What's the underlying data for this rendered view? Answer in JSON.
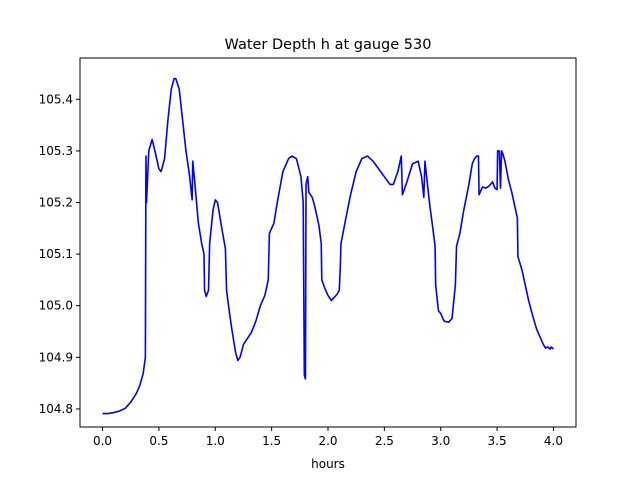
{
  "chart_data": {
    "type": "line",
    "title": "Water Depth h at gauge 530",
    "xlabel": "hours",
    "ylabel": "",
    "xlim": [
      -0.2,
      4.2
    ],
    "ylim": [
      104.765,
      105.48
    ],
    "x_ticks": [
      0.0,
      0.5,
      1.0,
      1.5,
      2.0,
      2.5,
      3.0,
      3.5,
      4.0
    ],
    "x_tick_labels": [
      "0.0",
      "0.5",
      "1.0",
      "1.5",
      "2.0",
      "2.5",
      "3.0",
      "3.5",
      "4.0"
    ],
    "y_ticks": [
      104.8,
      104.9,
      105.0,
      105.1,
      105.2,
      105.3,
      105.4
    ],
    "y_tick_labels": [
      "104.8",
      "104.9",
      "105.0",
      "105.1",
      "105.2",
      "105.3",
      "105.4"
    ],
    "grid": false,
    "series": [
      {
        "color": "#0000ff",
        "points": [
          [
            0.0,
            104.791
          ],
          [
            0.05,
            104.791
          ],
          [
            0.1,
            104.793
          ],
          [
            0.15,
            104.796
          ],
          [
            0.2,
            104.801
          ],
          [
            0.25,
            104.813
          ],
          [
            0.3,
            104.83
          ],
          [
            0.33,
            104.845
          ],
          [
            0.36,
            104.868
          ],
          [
            0.38,
            104.9
          ],
          [
            0.385,
            105.29
          ],
          [
            0.39,
            105.2
          ],
          [
            0.41,
            105.3
          ],
          [
            0.44,
            105.322
          ],
          [
            0.47,
            105.295
          ],
          [
            0.5,
            105.265
          ],
          [
            0.52,
            105.26
          ],
          [
            0.55,
            105.285
          ],
          [
            0.58,
            105.36
          ],
          [
            0.61,
            105.42
          ],
          [
            0.635,
            105.44
          ],
          [
            0.65,
            105.44
          ],
          [
            0.68,
            105.42
          ],
          [
            0.71,
            105.36
          ],
          [
            0.74,
            105.3
          ],
          [
            0.77,
            105.255
          ],
          [
            0.795,
            105.205
          ],
          [
            0.8,
            105.28
          ],
          [
            0.82,
            105.235
          ],
          [
            0.85,
            105.16
          ],
          [
            0.88,
            105.12
          ],
          [
            0.9,
            105.1
          ],
          [
            0.905,
            105.03
          ],
          [
            0.92,
            105.018
          ],
          [
            0.94,
            105.03
          ],
          [
            0.95,
            105.12
          ],
          [
            0.98,
            105.185
          ],
          [
            1.0,
            105.205
          ],
          [
            1.02,
            105.2
          ],
          [
            1.05,
            105.16
          ],
          [
            1.09,
            105.11
          ],
          [
            1.1,
            105.03
          ],
          [
            1.13,
            104.98
          ],
          [
            1.15,
            104.95
          ],
          [
            1.18,
            104.91
          ],
          [
            1.2,
            104.894
          ],
          [
            1.22,
            104.9
          ],
          [
            1.25,
            104.925
          ],
          [
            1.28,
            104.935
          ],
          [
            1.32,
            104.948
          ],
          [
            1.36,
            104.97
          ],
          [
            1.4,
            105.0
          ],
          [
            1.44,
            105.02
          ],
          [
            1.47,
            105.05
          ],
          [
            1.48,
            105.14
          ],
          [
            1.52,
            105.16
          ],
          [
            1.55,
            105.2
          ],
          [
            1.6,
            105.26
          ],
          [
            1.65,
            105.285
          ],
          [
            1.68,
            105.29
          ],
          [
            1.72,
            105.285
          ],
          [
            1.76,
            105.25
          ],
          [
            1.78,
            105.2
          ],
          [
            1.79,
            104.865
          ],
          [
            1.8,
            104.858
          ],
          [
            1.805,
            105.235
          ],
          [
            1.82,
            105.25
          ],
          [
            1.83,
            105.22
          ],
          [
            1.86,
            105.21
          ],
          [
            1.88,
            105.195
          ],
          [
            1.9,
            105.175
          ],
          [
            1.92,
            105.155
          ],
          [
            1.94,
            105.12
          ],
          [
            1.945,
            105.05
          ],
          [
            1.97,
            105.035
          ],
          [
            2.0,
            105.02
          ],
          [
            2.03,
            105.01
          ],
          [
            2.05,
            105.015
          ],
          [
            2.08,
            105.022
          ],
          [
            2.1,
            105.03
          ],
          [
            2.11,
            105.08
          ],
          [
            2.115,
            105.12
          ],
          [
            2.15,
            105.16
          ],
          [
            2.2,
            105.215
          ],
          [
            2.25,
            105.26
          ],
          [
            2.3,
            105.285
          ],
          [
            2.35,
            105.29
          ],
          [
            2.4,
            105.28
          ],
          [
            2.45,
            105.265
          ],
          [
            2.5,
            105.25
          ],
          [
            2.55,
            105.235
          ],
          [
            2.58,
            105.235
          ],
          [
            2.62,
            105.26
          ],
          [
            2.65,
            105.29
          ],
          [
            2.66,
            105.215
          ],
          [
            2.7,
            105.24
          ],
          [
            2.75,
            105.275
          ],
          [
            2.8,
            105.28
          ],
          [
            2.83,
            105.25
          ],
          [
            2.85,
            105.21
          ],
          [
            2.86,
            105.28
          ],
          [
            2.88,
            105.24
          ],
          [
            2.9,
            105.2
          ],
          [
            2.93,
            105.15
          ],
          [
            2.95,
            105.115
          ],
          [
            2.955,
            105.04
          ],
          [
            2.98,
            104.99
          ],
          [
            3.0,
            104.985
          ],
          [
            3.03,
            104.97
          ],
          [
            3.07,
            104.968
          ],
          [
            3.1,
            104.975
          ],
          [
            3.13,
            105.04
          ],
          [
            3.14,
            105.115
          ],
          [
            3.17,
            105.14
          ],
          [
            3.2,
            105.18
          ],
          [
            3.25,
            105.235
          ],
          [
            3.28,
            105.275
          ],
          [
            3.3,
            105.285
          ],
          [
            3.32,
            105.29
          ],
          [
            3.335,
            105.29
          ],
          [
            3.34,
            105.215
          ],
          [
            3.37,
            105.23
          ],
          [
            3.4,
            105.228
          ],
          [
            3.43,
            105.232
          ],
          [
            3.46,
            105.24
          ],
          [
            3.48,
            105.228
          ],
          [
            3.5,
            105.225
          ],
          [
            3.505,
            105.3
          ],
          [
            3.52,
            105.3
          ],
          [
            3.53,
            105.228
          ],
          [
            3.54,
            105.3
          ],
          [
            3.55,
            105.295
          ],
          [
            3.57,
            105.28
          ],
          [
            3.6,
            105.245
          ],
          [
            3.63,
            105.22
          ],
          [
            3.66,
            105.19
          ],
          [
            3.68,
            105.17
          ],
          [
            3.685,
            105.095
          ],
          [
            3.72,
            105.07
          ],
          [
            3.75,
            105.04
          ],
          [
            3.78,
            105.01
          ],
          [
            3.81,
            104.985
          ],
          [
            3.85,
            104.955
          ],
          [
            3.88,
            104.94
          ],
          [
            3.91,
            104.925
          ],
          [
            3.93,
            104.918
          ],
          [
            3.95,
            104.92
          ],
          [
            3.97,
            104.916
          ],
          [
            3.98,
            104.92
          ],
          [
            4.0,
            104.916
          ]
        ]
      }
    ]
  }
}
